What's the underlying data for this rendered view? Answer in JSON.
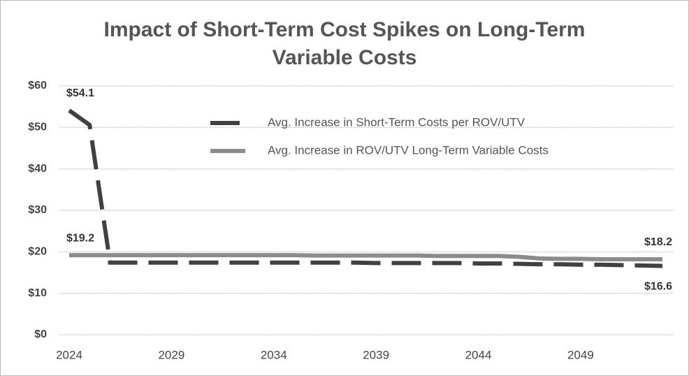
{
  "chart_data": {
    "type": "line",
    "title": "Impact of Short-Term Cost Spikes on Long-Term Variable Costs",
    "x": [
      2024,
      2025,
      2026,
      2027,
      2028,
      2029,
      2030,
      2031,
      2032,
      2033,
      2034,
      2035,
      2036,
      2037,
      2038,
      2039,
      2040,
      2041,
      2042,
      2043,
      2044,
      2045,
      2046,
      2047,
      2048,
      2049,
      2050,
      2051,
      2052,
      2053
    ],
    "series": [
      {
        "name": "Avg. Increase in Short-Term Costs per ROV/UTV",
        "color": "#404040",
        "dashed": true,
        "values": [
          54.1,
          50.6,
          17.4,
          17.4,
          17.4,
          17.4,
          17.4,
          17.4,
          17.4,
          17.4,
          17.4,
          17.4,
          17.4,
          17.4,
          17.4,
          17.3,
          17.3,
          17.3,
          17.3,
          17.3,
          17.2,
          17.2,
          17.1,
          17.0,
          17.0,
          16.9,
          16.9,
          16.8,
          16.7,
          16.6
        ],
        "value_labels": [
          "$54.1",
          null,
          null,
          null,
          null,
          null,
          null,
          null,
          null,
          null,
          null,
          null,
          null,
          null,
          null,
          null,
          null,
          null,
          null,
          null,
          null,
          null,
          null,
          null,
          null,
          null,
          null,
          null,
          null,
          "$16.6"
        ]
      },
      {
        "name": "Avg. Increase in ROV/UTV Long-Term Variable Costs",
        "color": "#8c8c8c",
        "dashed": false,
        "values": [
          19.2,
          19.2,
          19.2,
          19.2,
          19.2,
          19.2,
          19.2,
          19.2,
          19.2,
          19.2,
          19.2,
          19.2,
          19.1,
          19.1,
          19.1,
          19.1,
          19.1,
          19.1,
          19.0,
          19.0,
          19.0,
          19.0,
          18.8,
          18.4,
          18.3,
          18.3,
          18.2,
          18.2,
          18.2,
          18.2
        ],
        "value_labels": [
          "$19.2",
          null,
          null,
          null,
          null,
          null,
          null,
          null,
          null,
          null,
          null,
          null,
          null,
          null,
          null,
          null,
          null,
          null,
          null,
          null,
          null,
          null,
          null,
          null,
          null,
          null,
          null,
          null,
          null,
          "$18.2"
        ]
      }
    ],
    "xlim": [
      2024,
      2053
    ],
    "xticks": [
      2024,
      2029,
      2034,
      2039,
      2044,
      2049
    ],
    "ylim": [
      0,
      60
    ],
    "yticks": [
      {
        "value": 0,
        "label": "$0"
      },
      {
        "value": 10,
        "label": "$10"
      },
      {
        "value": 20,
        "label": "$20"
      },
      {
        "value": 30,
        "label": "$30"
      },
      {
        "value": 40,
        "label": "$40"
      },
      {
        "value": 50,
        "label": "$50"
      },
      {
        "value": 60,
        "label": "$60"
      }
    ],
    "grid": true,
    "legend": "top"
  }
}
